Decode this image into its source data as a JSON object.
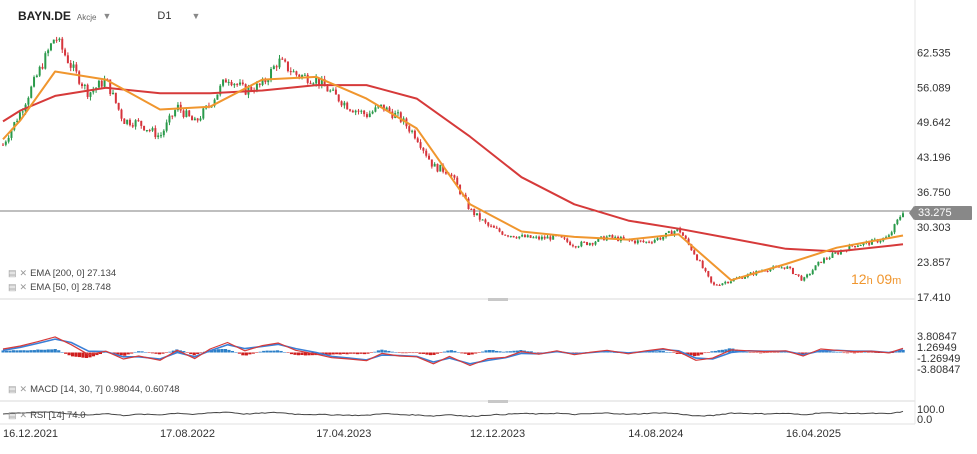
{
  "header": {
    "symbol": "BAYN.DE",
    "instrument_type": "Akcje",
    "interval": "D1"
  },
  "legend": {
    "ema200": "EMA [200, 0] 27.134",
    "ema50": "EMA [50, 0] 28.748",
    "macd": "MACD [14, 30, 7] 0.98044, 0.60748",
    "rsi": "RSI [14] 74.0"
  },
  "countdown": {
    "hours": "12",
    "h_unit": "h",
    "minutes": "09",
    "m_unit": "m"
  },
  "last_price": "33.275",
  "colors": {
    "up_candle": "#2a9a4b",
    "down_candle": "#d6343c",
    "ema200": "#d63a3a",
    "ema50": "#f0962e",
    "macd_line": "#d63a3a",
    "signal_line": "#3a7fd6",
    "hist_positive": "#2b7fc8",
    "hist_negative": "#cf1e1e",
    "rsi_line": "#444444",
    "countdown": "#f0962e"
  },
  "chart_data": [
    {
      "type": "candlestick",
      "panel": "price",
      "yticks": [
        "62.535",
        "56.089",
        "49.642",
        "43.196",
        "36.750",
        "30.303",
        "23.857",
        "17.410"
      ],
      "ylim": [
        17.41,
        68.5
      ],
      "last_price": 33.275,
      "series": [
        {
          "name": "BAYN.DE",
          "x": [
            "2021-12-16",
            "2022-01-12",
            "2022-02-08",
            "2022-03-07",
            "2022-04-01",
            "2022-04-28",
            "2022-05-25",
            "2022-06-21",
            "2022-07-15",
            "2022-08-17",
            "2022-09-13",
            "2022-10-10",
            "2022-11-03",
            "2022-11-30",
            "2022-12-27",
            "2023-01-23",
            "2023-02-17",
            "2023-03-16",
            "2023-04-17",
            "2023-05-11",
            "2023-06-07",
            "2023-07-04",
            "2023-07-28",
            "2023-08-24",
            "2023-09-20",
            "2023-10-16",
            "2023-11-10",
            "2023-12-12",
            "2024-01-09",
            "2024-02-05",
            "2024-03-01",
            "2024-03-28",
            "2024-04-25",
            "2024-05-22",
            "2024-06-18",
            "2024-07-12",
            "2024-08-14",
            "2024-09-10",
            "2024-10-07",
            "2024-10-31",
            "2024-11-27",
            "2024-12-23",
            "2025-01-21",
            "2025-02-17",
            "2025-03-14",
            "2025-04-16",
            "2025-05-13",
            "2025-06-09",
            "2025-07-04",
            "2025-07-31",
            "2025-08-27",
            "2025-09-23",
            "2025-10-15"
          ],
          "close": [
            45.5,
            51.5,
            58.5,
            65.5,
            60.0,
            55.0,
            57.5,
            50.0,
            49.5,
            47.0,
            52.5,
            49.5,
            53.0,
            58.0,
            55.5,
            56.5,
            61.0,
            58.5,
            57.5,
            55.0,
            52.5,
            51.0,
            52.5,
            50.5,
            47.0,
            41.5,
            40.5,
            33.5,
            30.5,
            29.0,
            28.5,
            28.2,
            28.5,
            27.0,
            27.5,
            28.5,
            27.8,
            27.5,
            28.5,
            30.0,
            25.0,
            19.5,
            20.5,
            21.5,
            22.5,
            23.0,
            20.5,
            24.0,
            25.5,
            27.0,
            27.5,
            28.5,
            33.275
          ]
        },
        {
          "name": "EMA [200, 0]",
          "x": [
            "2021-12-16",
            "2022-01-12",
            "2022-03-07",
            "2022-05-25",
            "2022-08-17",
            "2022-11-03",
            "2023-01-23",
            "2023-04-17",
            "2023-07-04",
            "2023-09-20",
            "2023-12-12",
            "2024-03-01",
            "2024-05-22",
            "2024-08-14",
            "2024-10-31",
            "2025-01-21",
            "2025-04-16",
            "2025-07-04",
            "2025-10-15"
          ],
          "values": [
            49.8,
            51.8,
            54.5,
            56.0,
            55.0,
            55.0,
            55.5,
            56.5,
            56.5,
            54.0,
            47.0,
            39.5,
            34.5,
            31.5,
            30.0,
            28.2,
            26.3,
            25.8,
            27.134
          ]
        },
        {
          "name": "EMA [50, 0]",
          "x": [
            "2021-12-16",
            "2022-01-12",
            "2022-03-07",
            "2022-05-25",
            "2022-08-17",
            "2022-11-03",
            "2023-01-23",
            "2023-04-17",
            "2023-07-04",
            "2023-09-20",
            "2023-12-12",
            "2024-03-01",
            "2024-05-22",
            "2024-08-14",
            "2024-10-31",
            "2025-01-21",
            "2025-04-16",
            "2025-07-04",
            "2025-10-15"
          ],
          "values": [
            46.5,
            50.0,
            59.0,
            57.5,
            52.0,
            52.5,
            57.5,
            58.0,
            54.0,
            48.5,
            34.5,
            29.5,
            28.5,
            28.0,
            29.0,
            20.5,
            23.5,
            26.5,
            28.748
          ]
        }
      ]
    },
    {
      "type": "bar+line",
      "panel": "macd",
      "title": "MACD [14, 30, 7]",
      "yticks": [
        "3.80847",
        "1.26949",
        "-1.26949",
        "-3.80847"
      ],
      "ylim": [
        -3.80847,
        3.80847
      ],
      "series": [
        {
          "name": "MACD",
          "x": [
            "2021-12-16",
            "2022-01-12",
            "2022-02-08",
            "2022-03-07",
            "2022-04-01",
            "2022-04-28",
            "2022-05-25",
            "2022-06-21",
            "2022-07-15",
            "2022-08-17",
            "2022-09-13",
            "2022-10-10",
            "2022-11-03",
            "2022-11-30",
            "2022-12-27",
            "2023-01-23",
            "2023-02-17",
            "2023-03-16",
            "2023-04-17",
            "2023-05-11",
            "2023-06-07",
            "2023-07-04",
            "2023-07-28",
            "2023-08-24",
            "2023-09-20",
            "2023-10-16",
            "2023-11-10",
            "2023-12-12",
            "2024-01-09",
            "2024-02-05",
            "2024-03-01",
            "2024-03-28",
            "2024-04-25",
            "2024-05-22",
            "2024-06-18",
            "2024-07-12",
            "2024-08-14",
            "2024-09-10",
            "2024-10-07",
            "2024-10-31",
            "2024-11-27",
            "2024-12-23",
            "2025-01-21",
            "2025-02-17",
            "2025-03-14",
            "2025-04-16",
            "2025-05-13",
            "2025-06-09",
            "2025-07-04",
            "2025-07-31",
            "2025-08-27",
            "2025-09-23",
            "2025-10-15"
          ],
          "values": [
            0.8,
            1.5,
            2.5,
            3.6,
            1.8,
            -0.5,
            0.3,
            -1.5,
            -0.8,
            -1.8,
            0.5,
            -1.4,
            0.8,
            2.3,
            0.4,
            1.6,
            2.2,
            0.5,
            -0.4,
            -1.2,
            -1.5,
            -1.9,
            -0.2,
            -0.8,
            -1.0,
            -2.6,
            -0.9,
            -3.0,
            -1.4,
            -1.1,
            0.2,
            -0.4,
            0.4,
            -0.5,
            0.1,
            0.5,
            -0.3,
            0.4,
            0.9,
            0.2,
            -1.8,
            -1.3,
            0.6,
            0.4,
            0.2,
            0.4,
            -0.8,
            0.8,
            0.5,
            0.2,
            0.3,
            -0.1,
            0.98044
          ]
        },
        {
          "name": "Signal",
          "x": [
            "2021-12-16",
            "2022-01-12",
            "2022-02-08",
            "2022-03-07",
            "2022-04-01",
            "2022-04-28",
            "2022-05-25",
            "2022-06-21",
            "2022-07-15",
            "2022-08-17",
            "2022-09-13",
            "2022-10-10",
            "2022-11-03",
            "2022-11-30",
            "2022-12-27",
            "2023-01-23",
            "2023-02-17",
            "2023-03-16",
            "2023-04-17",
            "2023-05-11",
            "2023-06-07",
            "2023-07-04",
            "2023-07-28",
            "2023-08-24",
            "2023-09-20",
            "2023-10-16",
            "2023-11-10",
            "2023-12-12",
            "2024-01-09",
            "2024-02-05",
            "2024-03-01",
            "2024-03-28",
            "2024-04-25",
            "2024-05-22",
            "2024-06-18",
            "2024-07-12",
            "2024-08-14",
            "2024-09-10",
            "2024-10-07",
            "2024-10-31",
            "2024-11-27",
            "2024-12-23",
            "2025-01-21",
            "2025-02-17",
            "2025-03-14",
            "2025-04-16",
            "2025-05-13",
            "2025-06-09",
            "2025-07-04",
            "2025-07-31",
            "2025-08-27",
            "2025-09-23",
            "2025-10-15"
          ],
          "values": [
            0.5,
            1.2,
            2.1,
            3.1,
            2.3,
            0.3,
            0.2,
            -1.0,
            -1.0,
            -1.5,
            0.0,
            -1.0,
            0.4,
            1.8,
            0.9,
            1.4,
            1.9,
            0.9,
            0.0,
            -0.9,
            -1.3,
            -1.7,
            -0.6,
            -0.7,
            -0.9,
            -2.2,
            -1.3,
            -2.6,
            -1.8,
            -1.2,
            -0.2,
            -0.3,
            0.2,
            -0.3,
            0.0,
            0.3,
            -0.1,
            0.2,
            0.7,
            0.4,
            -1.3,
            -1.5,
            0.0,
            0.4,
            0.3,
            0.3,
            -0.5,
            0.4,
            0.5,
            0.3,
            0.3,
            0.0,
            0.60748
          ]
        }
      ]
    },
    {
      "type": "line",
      "panel": "rsi",
      "title": "RSI [14]",
      "yticks": [
        "100.0",
        "0.0"
      ],
      "ylim": [
        0,
        100
      ],
      "series": [
        {
          "name": "RSI",
          "x": [
            "2021-12-16",
            "2022-01-12",
            "2022-02-08",
            "2022-03-07",
            "2022-04-01",
            "2022-04-28",
            "2022-05-25",
            "2022-06-21",
            "2022-07-15",
            "2022-08-17",
            "2022-09-13",
            "2022-10-10",
            "2022-11-03",
            "2022-11-30",
            "2022-12-27",
            "2023-01-23",
            "2023-02-17",
            "2023-03-16",
            "2023-04-17",
            "2023-05-11",
            "2023-06-07",
            "2023-07-04",
            "2023-07-28",
            "2023-08-24",
            "2023-09-20",
            "2023-10-16",
            "2023-11-10",
            "2023-12-12",
            "2024-01-09",
            "2024-02-05",
            "2024-03-01",
            "2024-03-28",
            "2024-04-25",
            "2024-05-22",
            "2024-06-18",
            "2024-07-12",
            "2024-08-14",
            "2024-09-10",
            "2024-10-07",
            "2024-10-31",
            "2024-11-27",
            "2024-12-23",
            "2025-01-21",
            "2025-02-17",
            "2025-03-14",
            "2025-04-16",
            "2025-05-13",
            "2025-06-09",
            "2025-07-04",
            "2025-07-31",
            "2025-08-27",
            "2025-09-23",
            "2025-10-15"
          ],
          "values": [
            52,
            60,
            68,
            72,
            45,
            40,
            55,
            35,
            48,
            42,
            60,
            44,
            62,
            70,
            50,
            58,
            66,
            48,
            45,
            42,
            38,
            36,
            55,
            44,
            40,
            30,
            45,
            25,
            40,
            46,
            56,
            50,
            58,
            45,
            54,
            60,
            46,
            55,
            62,
            52,
            30,
            34,
            60,
            55,
            52,
            56,
            42,
            62,
            58,
            55,
            57,
            52,
            74.0
          ]
        }
      ]
    }
  ],
  "x_axis": {
    "tick_labels": [
      "16.12.2021",
      "17.08.2022",
      "17.04.2023",
      "12.12.2023",
      "14.08.2024",
      "16.04.2025"
    ]
  }
}
